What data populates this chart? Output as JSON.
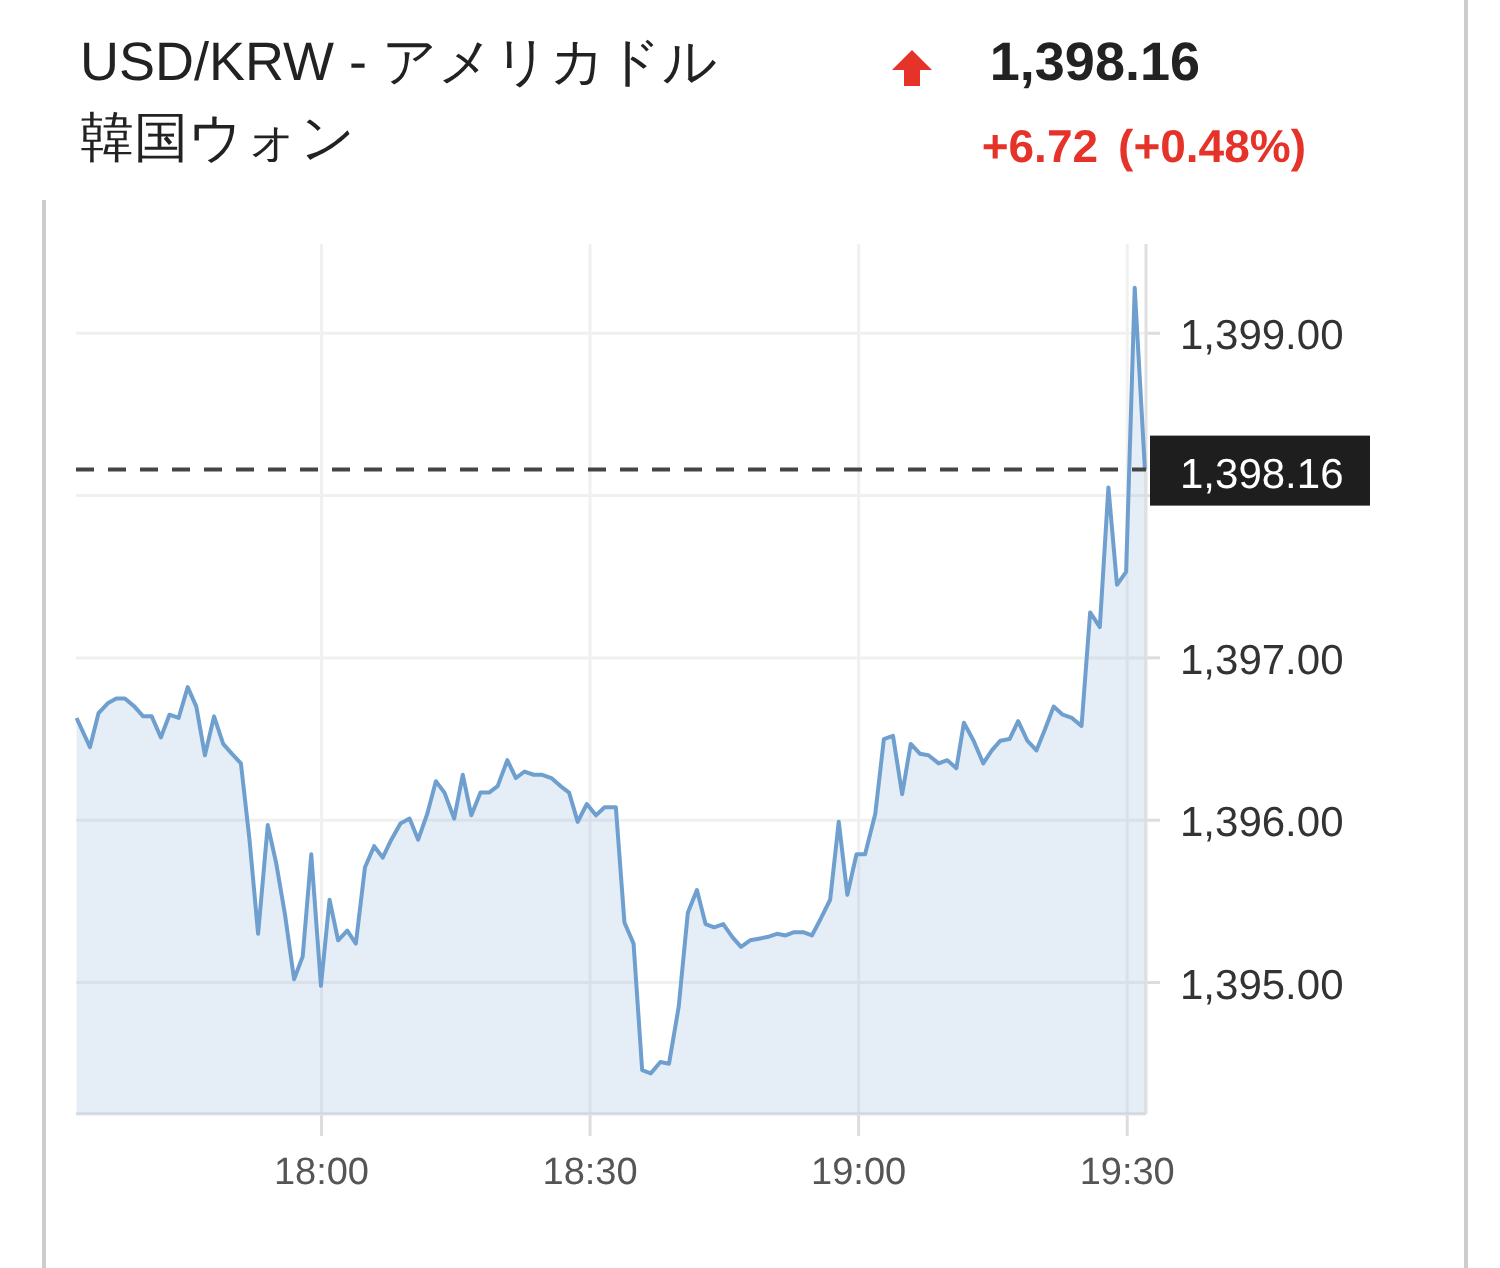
{
  "chart_data": {
    "type": "area",
    "title": "USD/KRW - アメリカドル韓国ウォン",
    "annotations": [
      "1,398.16",
      "+6.72",
      "(+0.48%)"
    ],
    "series": [
      {
        "color": "#6f9fcf",
        "x": [
          17.544,
          17.569,
          17.585,
          17.602,
          17.618,
          17.634,
          17.652,
          17.668,
          17.684,
          17.701,
          17.717,
          17.734,
          17.751,
          17.767,
          17.783,
          17.8,
          17.817,
          17.833,
          17.85,
          17.866,
          17.882,
          17.9,
          17.916,
          17.932,
          17.949,
          17.965,
          17.981,
          17.999,
          18.015,
          18.031,
          18.048,
          18.064,
          18.081,
          18.098,
          18.114,
          18.13,
          18.147,
          18.164,
          18.18,
          18.197,
          18.213,
          18.229,
          18.247,
          18.263,
          18.279,
          18.296,
          18.312,
          18.328,
          18.346,
          18.362,
          18.378,
          18.395,
          18.411,
          18.428,
          18.445,
          18.461,
          18.477,
          18.494,
          18.511,
          18.527,
          18.548,
          18.564,
          18.581,
          18.597,
          18.613,
          18.631,
          18.647,
          18.665,
          18.682,
          18.699,
          18.715,
          18.731,
          18.748,
          18.765,
          18.781,
          18.798,
          18.814,
          18.83,
          18.848,
          18.864,
          18.88,
          18.897,
          18.913,
          18.929,
          18.947,
          18.963,
          18.979,
          18.996,
          19.012,
          19.031,
          19.047,
          19.064,
          19.081,
          19.097,
          19.114,
          19.13,
          19.149,
          19.165,
          19.182,
          19.196,
          19.214,
          19.232,
          19.248,
          19.264,
          19.281,
          19.297,
          19.314,
          19.331,
          19.347,
          19.363,
          19.38,
          19.397,
          19.415,
          19.431,
          19.449,
          19.465,
          19.481,
          19.498,
          19.514,
          19.533
        ],
        "values": [
          1396.63,
          1396.45,
          1396.66,
          1396.72,
          1396.75,
          1396.75,
          1396.7,
          1396.64,
          1396.64,
          1396.51,
          1396.65,
          1396.63,
          1396.82,
          1396.7,
          1396.4,
          1396.64,
          1396.47,
          1396.41,
          1396.35,
          1395.88,
          1395.3,
          1395.97,
          1395.73,
          1395.42,
          1395.02,
          1395.16,
          1395.79,
          1394.98,
          1395.51,
          1395.26,
          1395.32,
          1395.24,
          1395.71,
          1395.84,
          1395.77,
          1395.88,
          1395.98,
          1396.01,
          1395.88,
          1396.04,
          1396.24,
          1396.17,
          1396.01,
          1396.28,
          1396.03,
          1396.17,
          1396.17,
          1396.21,
          1396.37,
          1396.26,
          1396.3,
          1396.28,
          1396.28,
          1396.26,
          1396.21,
          1396.17,
          1395.99,
          1396.1,
          1396.03,
          1396.08,
          1396.08,
          1395.37,
          1395.24,
          1394.46,
          1394.44,
          1394.51,
          1394.5,
          1394.85,
          1395.43,
          1395.57,
          1395.36,
          1395.34,
          1395.36,
          1395.28,
          1395.22,
          1395.26,
          1395.27,
          1395.28,
          1395.3,
          1395.29,
          1395.31,
          1395.31,
          1395.29,
          1395.39,
          1395.51,
          1395.99,
          1395.54,
          1395.79,
          1395.79,
          1396.04,
          1396.5,
          1396.52,
          1396.16,
          1396.47,
          1396.41,
          1396.4,
          1396.35,
          1396.37,
          1396.32,
          1396.6,
          1396.49,
          1396.35,
          1396.43,
          1396.49,
          1396.5,
          1396.61,
          1396.49,
          1396.43,
          1396.56,
          1396.7,
          1396.65,
          1396.63,
          1396.58,
          1397.28,
          1397.19,
          1398.05,
          1397.45,
          1397.53,
          1399.28,
          1398.16
        ]
      }
    ],
    "xlim": [
      17.543,
      19.535
    ],
    "xticks": [
      {
        "value": 18,
        "label": "18:00"
      },
      {
        "value": 18.5,
        "label": "18:30"
      },
      {
        "value": 19,
        "label": "19:00"
      },
      {
        "value": 19.5,
        "label": "19:30"
      }
    ],
    "ylim": [
      1394.19,
      1399.55
    ],
    "yticks": [
      {
        "value": 1395,
        "label": "1,395.00"
      },
      {
        "value": 1396,
        "label": "1,396.00"
      },
      {
        "value": 1397,
        "label": "1,397.00"
      },
      {
        "value": 1398,
        "label": null
      },
      {
        "value": 1399,
        "label": "1,399.00"
      }
    ],
    "ref_lines": [
      {
        "axis": "y",
        "value": 1398.16,
        "label": "1,398.16",
        "color": "#444444",
        "line_style": "dashed"
      }
    ],
    "grid": true,
    "marker": "none",
    "line_style": "solid"
  }
}
